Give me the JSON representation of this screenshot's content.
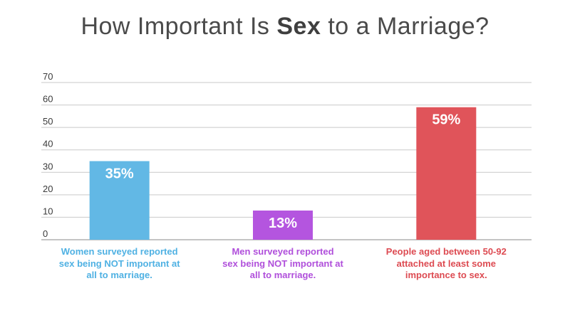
{
  "title": {
    "before": "How Important Is ",
    "emphasis": "Sex",
    "after": " to a Marriage?"
  },
  "chart_data": {
    "type": "bar",
    "title": "How Important Is Sex to a Marriage?",
    "categories": [
      "Women surveyed reported sex being NOT important at all to marriage.",
      "Men surveyed reported sex being NOT important at all to marriage.",
      "People aged between 50-92 attached at least some importance to sex."
    ],
    "category_lines": [
      [
        "Women surveyed reported",
        "sex being NOT important at",
        "all to marriage."
      ],
      [
        "Men surveyed reported",
        "sex being NOT important at",
        "all to marriage."
      ],
      [
        "People aged between 50-92",
        "attached at least some",
        "importance to sex."
      ]
    ],
    "values": [
      35,
      13,
      59
    ],
    "value_labels": [
      "35%",
      "13%",
      "59%"
    ],
    "colors": [
      "#62b8e5",
      "#b455df",
      "#e0545a"
    ],
    "label_colors": [
      "#4fb1e3",
      "#b04fdb",
      "#dd4b52"
    ],
    "ylim": [
      0,
      70
    ],
    "yticks": [
      0,
      10,
      20,
      30,
      40,
      50,
      60,
      70
    ],
    "xlabel": "",
    "ylabel": "",
    "grid": true,
    "grid_color": "#c9c9c9"
  }
}
